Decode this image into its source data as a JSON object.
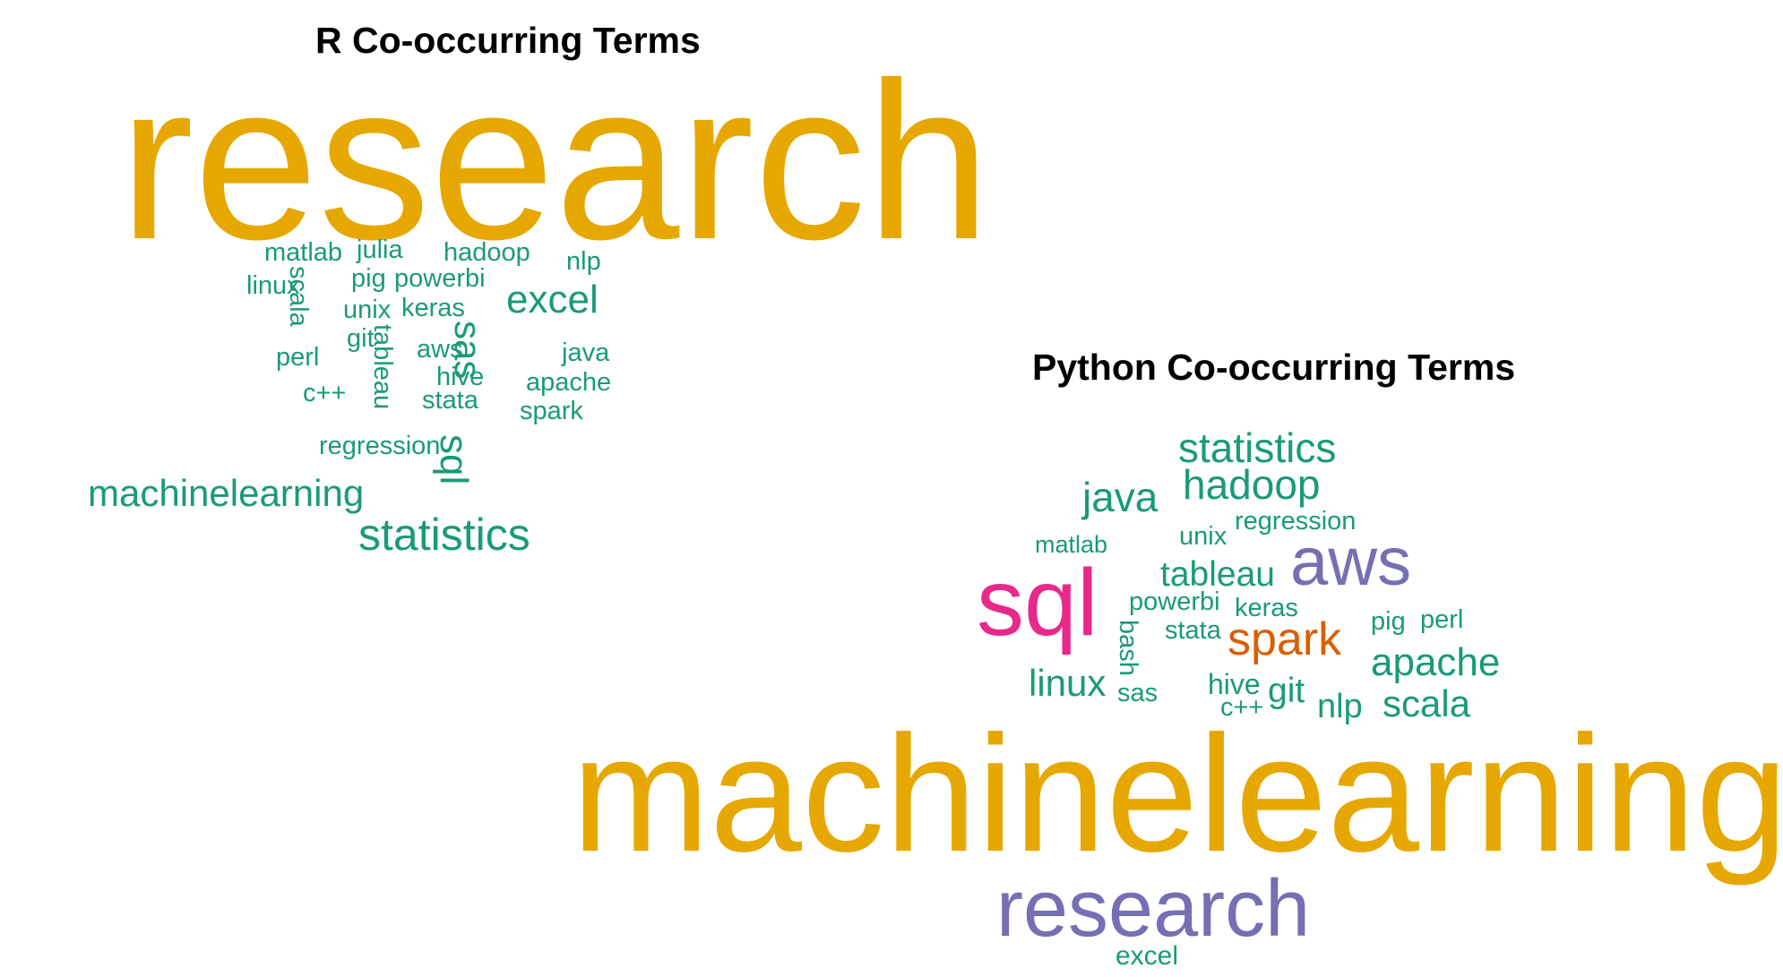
{
  "colors": {
    "gold": "#e6a800",
    "teal": "#1a9a78",
    "purple": "#7570b3",
    "pink": "#e7298a",
    "orange": "#d95f02"
  },
  "clouds": [
    {
      "id": "r",
      "title": "R Co-occurring Terms",
      "words": [
        {
          "text": "research",
          "color": "gold"
        },
        {
          "text": "matlab",
          "color": "teal"
        },
        {
          "text": "julia",
          "color": "teal"
        },
        {
          "text": "hadoop",
          "color": "teal"
        },
        {
          "text": "nlp",
          "color": "teal"
        },
        {
          "text": "linux",
          "color": "teal"
        },
        {
          "text": "scala",
          "color": "teal"
        },
        {
          "text": "pig",
          "color": "teal"
        },
        {
          "text": "powerbi",
          "color": "teal"
        },
        {
          "text": "excel",
          "color": "teal"
        },
        {
          "text": "unix",
          "color": "teal"
        },
        {
          "text": "keras",
          "color": "teal"
        },
        {
          "text": "git",
          "color": "teal"
        },
        {
          "text": "perl",
          "color": "teal"
        },
        {
          "text": "tableau",
          "color": "teal"
        },
        {
          "text": "aws",
          "color": "teal"
        },
        {
          "text": "sas",
          "color": "teal"
        },
        {
          "text": "java",
          "color": "teal"
        },
        {
          "text": "hive",
          "color": "teal"
        },
        {
          "text": "apache",
          "color": "teal"
        },
        {
          "text": "c++",
          "color": "teal"
        },
        {
          "text": "stata",
          "color": "teal"
        },
        {
          "text": "spark",
          "color": "teal"
        },
        {
          "text": "regression",
          "color": "teal"
        },
        {
          "text": "sql",
          "color": "teal"
        },
        {
          "text": "machinelearning",
          "color": "teal"
        },
        {
          "text": "statistics",
          "color": "teal"
        }
      ]
    },
    {
      "id": "python",
      "title": "Python Co-occurring Terms",
      "words": [
        {
          "text": "statistics",
          "color": "teal"
        },
        {
          "text": "java",
          "color": "teal"
        },
        {
          "text": "hadoop",
          "color": "teal"
        },
        {
          "text": "unix",
          "color": "teal"
        },
        {
          "text": "regression",
          "color": "teal"
        },
        {
          "text": "matlab",
          "color": "teal"
        },
        {
          "text": "aws",
          "color": "purple"
        },
        {
          "text": "tableau",
          "color": "teal"
        },
        {
          "text": "sql",
          "color": "pink"
        },
        {
          "text": "powerbi",
          "color": "teal"
        },
        {
          "text": "keras",
          "color": "teal"
        },
        {
          "text": "pig",
          "color": "teal"
        },
        {
          "text": "perl",
          "color": "teal"
        },
        {
          "text": "bash",
          "color": "teal"
        },
        {
          "text": "stata",
          "color": "teal"
        },
        {
          "text": "spark",
          "color": "orange"
        },
        {
          "text": "apache",
          "color": "teal"
        },
        {
          "text": "linux",
          "color": "teal"
        },
        {
          "text": "sas",
          "color": "teal"
        },
        {
          "text": "hive",
          "color": "teal"
        },
        {
          "text": "git",
          "color": "teal"
        },
        {
          "text": "c++",
          "color": "teal"
        },
        {
          "text": "nlp",
          "color": "teal"
        },
        {
          "text": "scala",
          "color": "teal"
        },
        {
          "text": "machinelearning",
          "color": "gold"
        },
        {
          "text": "research",
          "color": "purple"
        },
        {
          "text": "excel",
          "color": "teal"
        }
      ]
    }
  ]
}
